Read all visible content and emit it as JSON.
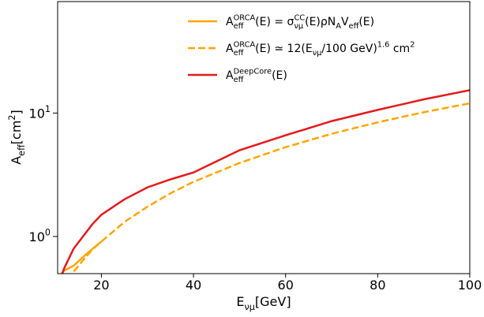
{
  "chart_data": {
    "type": "line",
    "xlabel": "E_{νμ}[GeV]",
    "ylabel": "A_{eff}[cm^{2}]",
    "xlim": [
      10.5,
      100
    ],
    "xticks": [
      20,
      40,
      60,
      80,
      100
    ],
    "ylim": [
      0.5,
      80
    ],
    "yticks": [
      {
        "value": 1,
        "label": "10^{0}"
      },
      {
        "value": 10,
        "label": "10^{1}"
      }
    ],
    "log_y": true,
    "legend": "upper right",
    "series": [
      {
        "name": "A_{eff}^{ORCA}(E) = σ_{νμ}^{CC}(E)ρN_{A}V_{eff}(E)",
        "color": "#ffa500",
        "dash": false,
        "x": [
          11.3,
          12,
          14,
          16,
          18,
          20
        ],
        "values": [
          0.5,
          0.53,
          0.58,
          0.68,
          0.79,
          0.91
        ]
      },
      {
        "name": "A_{eff}^{ORCA}(E) ≃ 12(E_{νμ}/100 GeV)^{1.6} cm^{2}",
        "color": "#ffa500",
        "dash": true,
        "x": [
          14,
          16,
          18,
          20,
          25,
          30,
          35,
          40,
          50,
          60,
          70,
          80,
          90,
          100
        ],
        "values": [
          0.52,
          0.64,
          0.78,
          0.91,
          1.31,
          1.74,
          2.24,
          2.77,
          3.94,
          5.29,
          6.79,
          8.41,
          10.15,
          12
        ]
      },
      {
        "name": "A_{eff}^{DeepCore}(E)",
        "color": "#e31a1c",
        "dash": false,
        "x": [
          11.5,
          12,
          14,
          16,
          18,
          20,
          25,
          30,
          35,
          40,
          50,
          60,
          70,
          80,
          90,
          100
        ],
        "values": [
          0.5,
          0.56,
          0.8,
          1.0,
          1.25,
          1.5,
          2.0,
          2.5,
          2.9,
          3.3,
          5.0,
          6.6,
          8.6,
          10.6,
          12.9,
          15.3
        ]
      }
    ]
  }
}
